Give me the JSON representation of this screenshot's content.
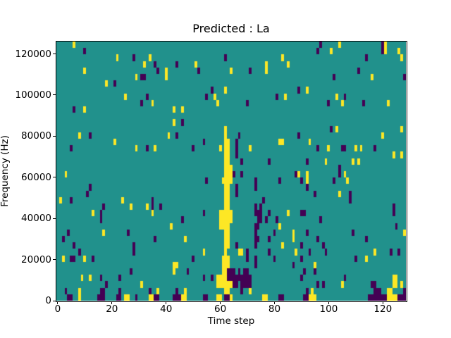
{
  "figure": {
    "background": "#ffffff",
    "text_color": "#000000"
  },
  "chart_data": {
    "type": "heatmap",
    "title": "Predicted : La",
    "xlabel": "Time step",
    "ylabel": "Frequency (Hz)",
    "legend": "none",
    "grid_lines": "off",
    "x_ticks": [
      0,
      20,
      40,
      60,
      80,
      100,
      120
    ],
    "y_ticks": [
      0,
      20000,
      40000,
      60000,
      80000,
      100000,
      120000
    ],
    "x_range": [
      0,
      129
    ],
    "y_range": [
      0,
      126000
    ],
    "grid": {
      "cols": 129,
      "rows": 40
    },
    "colors": {
      "mid_teal": "#21918c",
      "high_yellow": "#fde725",
      "low_dark": "#440154"
    },
    "features": {
      "description_of_values": "3-level viridis map: background value=teal, high cells=yellow, low cells=dark purple",
      "yellow_streak": "dense vertical yellow band at time steps 60-64 from 0 Hz up to ~80000 Hz",
      "dark_cluster": "dense dark cells at time steps 63-81 in the 0-45000 Hz band and along bottom-right edge"
    },
    "yellow_cells": [
      [
        6,
        39
      ],
      [
        104,
        39
      ],
      [
        121,
        39
      ],
      [
        101,
        38
      ],
      [
        121,
        38
      ],
      [
        126,
        38
      ],
      [
        22,
        37
      ],
      [
        34,
        37
      ],
      [
        83,
        37
      ],
      [
        127,
        37
      ],
      [
        32,
        36
      ],
      [
        51,
        36
      ],
      [
        77,
        36
      ],
      [
        85,
        36
      ],
      [
        10,
        35
      ],
      [
        40,
        35
      ],
      [
        64,
        35
      ],
      [
        77,
        35
      ],
      [
        29,
        34
      ],
      [
        40,
        34
      ],
      [
        116,
        34
      ],
      [
        18,
        33
      ],
      [
        62,
        32
      ],
      [
        92,
        32
      ],
      [
        25,
        31
      ],
      [
        58,
        31
      ],
      [
        84,
        31
      ],
      [
        103,
        31
      ],
      [
        35,
        30
      ],
      [
        59,
        30
      ],
      [
        105,
        30
      ],
      [
        122,
        30
      ],
      [
        10,
        29
      ],
      [
        43,
        29
      ],
      [
        46,
        29
      ],
      [
        43,
        27
      ],
      [
        62,
        26
      ],
      [
        103,
        26
      ],
      [
        127,
        26
      ],
      [
        8,
        25
      ],
      [
        41,
        25
      ],
      [
        62,
        25
      ],
      [
        120,
        25
      ],
      [
        21,
        24
      ],
      [
        62,
        24
      ],
      [
        63,
        24
      ],
      [
        82,
        24
      ],
      [
        83,
        24
      ],
      [
        93,
        24
      ],
      [
        29,
        23
      ],
      [
        36,
        23
      ],
      [
        60,
        23
      ],
      [
        62,
        23
      ],
      [
        63,
        23
      ],
      [
        71,
        23
      ],
      [
        100,
        23
      ],
      [
        110,
        23
      ],
      [
        112,
        23
      ],
      [
        62,
        22
      ],
      [
        63,
        22
      ],
      [
        124,
        22
      ],
      [
        127,
        22
      ],
      [
        62,
        21
      ],
      [
        63,
        21
      ],
      [
        99,
        21
      ],
      [
        109,
        21
      ],
      [
        111,
        21
      ],
      [
        62,
        20
      ],
      [
        63,
        20
      ],
      [
        64,
        20
      ],
      [
        3,
        19
      ],
      [
        62,
        19
      ],
      [
        63,
        19
      ],
      [
        64,
        19
      ],
      [
        89,
        19
      ],
      [
        92,
        19
      ],
      [
        106,
        19
      ],
      [
        61,
        18
      ],
      [
        62,
        18
      ],
      [
        63,
        18
      ],
      [
        64,
        18
      ],
      [
        92,
        18
      ],
      [
        107,
        18
      ],
      [
        62,
        17
      ],
      [
        63,
        17
      ],
      [
        62,
        16
      ],
      [
        63,
        16
      ],
      [
        104,
        16
      ],
      [
        1,
        15
      ],
      [
        24,
        15
      ],
      [
        62,
        15
      ],
      [
        63,
        15
      ],
      [
        27,
        14
      ],
      [
        33,
        14
      ],
      [
        62,
        14
      ],
      [
        63,
        14
      ],
      [
        13,
        13
      ],
      [
        35,
        13
      ],
      [
        60,
        13
      ],
      [
        61,
        13
      ],
      [
        62,
        13
      ],
      [
        63,
        13
      ],
      [
        64,
        13
      ],
      [
        85,
        13
      ],
      [
        60,
        12
      ],
      [
        61,
        12
      ],
      [
        62,
        12
      ],
      [
        63,
        12
      ],
      [
        64,
        12
      ],
      [
        42,
        11
      ],
      [
        60,
        11
      ],
      [
        61,
        11
      ],
      [
        62,
        11
      ],
      [
        63,
        11
      ],
      [
        82,
        11
      ],
      [
        17,
        10
      ],
      [
        62,
        10
      ],
      [
        63,
        10
      ],
      [
        87,
        10
      ],
      [
        128,
        10
      ],
      [
        47,
        9
      ],
      [
        62,
        9
      ],
      [
        63,
        9
      ],
      [
        87,
        9
      ],
      [
        62,
        8
      ],
      [
        63,
        8
      ],
      [
        83,
        8
      ],
      [
        54,
        7
      ],
      [
        62,
        7
      ],
      [
        67,
        7
      ],
      [
        68,
        7
      ],
      [
        88,
        7
      ],
      [
        117,
        7
      ],
      [
        2,
        6
      ],
      [
        10,
        6
      ],
      [
        61,
        6
      ],
      [
        62,
        6
      ],
      [
        63,
        6
      ],
      [
        114,
        6
      ],
      [
        43,
        5
      ],
      [
        44,
        5
      ],
      [
        61,
        5
      ],
      [
        62,
        5
      ],
      [
        63,
        5
      ],
      [
        95,
        5
      ],
      [
        43,
        4
      ],
      [
        61,
        4
      ],
      [
        62,
        4
      ],
      [
        9,
        3
      ],
      [
        12,
        3
      ],
      [
        59,
        3
      ],
      [
        60,
        3
      ],
      [
        61,
        3
      ],
      [
        62,
        3
      ],
      [
        124,
        3
      ],
      [
        125,
        3
      ],
      [
        31,
        2
      ],
      [
        59,
        2
      ],
      [
        60,
        2
      ],
      [
        61,
        2
      ],
      [
        62,
        2
      ],
      [
        63,
        2
      ],
      [
        64,
        2
      ],
      [
        105,
        2
      ],
      [
        124,
        2
      ],
      [
        125,
        2
      ],
      [
        127,
        2
      ],
      [
        8,
        1
      ],
      [
        37,
        1
      ],
      [
        47,
        1
      ],
      [
        62,
        1
      ],
      [
        63,
        1
      ],
      [
        71,
        1
      ],
      [
        94,
        1
      ],
      [
        122,
        1
      ],
      [
        123,
        1
      ],
      [
        8,
        0
      ],
      [
        25,
        0
      ],
      [
        26,
        0
      ],
      [
        34,
        0
      ],
      [
        35,
        0
      ],
      [
        46,
        0
      ],
      [
        47,
        0
      ],
      [
        59,
        0
      ],
      [
        60,
        0
      ],
      [
        64,
        0
      ],
      [
        76,
        0
      ],
      [
        77,
        0
      ],
      [
        93,
        0
      ],
      [
        94,
        0
      ],
      [
        95,
        0
      ],
      [
        122,
        0
      ],
      [
        123,
        0
      ],
      [
        124,
        0
      ],
      [
        125,
        0
      ]
    ],
    "dark_cells": [
      [
        97,
        39
      ],
      [
        120,
        39
      ],
      [
        10,
        38
      ],
      [
        96,
        38
      ],
      [
        120,
        38
      ],
      [
        28,
        37
      ],
      [
        62,
        37
      ],
      [
        114,
        37
      ],
      [
        36,
        36
      ],
      [
        44,
        36
      ],
      [
        37,
        35
      ],
      [
        52,
        35
      ],
      [
        71,
        35
      ],
      [
        111,
        35
      ],
      [
        31,
        34
      ],
      [
        32,
        34
      ],
      [
        102,
        34
      ],
      [
        128,
        34
      ],
      [
        21,
        33
      ],
      [
        57,
        32
      ],
      [
        89,
        32
      ],
      [
        33,
        31
      ],
      [
        55,
        31
      ],
      [
        81,
        31
      ],
      [
        106,
        31
      ],
      [
        31,
        30
      ],
      [
        70,
        30
      ],
      [
        100,
        30
      ],
      [
        113,
        30
      ],
      [
        6,
        29
      ],
      [
        46,
        27
      ],
      [
        101,
        26
      ],
      [
        12,
        25
      ],
      [
        44,
        25
      ],
      [
        67,
        25
      ],
      [
        89,
        25
      ],
      [
        54,
        24
      ],
      [
        66,
        24
      ],
      [
        5,
        23
      ],
      [
        33,
        23
      ],
      [
        50,
        23
      ],
      [
        66,
        23
      ],
      [
        96,
        23
      ],
      [
        105,
        23
      ],
      [
        106,
        23
      ],
      [
        117,
        23
      ],
      [
        66,
        22
      ],
      [
        68,
        21
      ],
      [
        78,
        21
      ],
      [
        92,
        21
      ],
      [
        104,
        20
      ],
      [
        65,
        19
      ],
      [
        68,
        19
      ],
      [
        88,
        19
      ],
      [
        104,
        19
      ],
      [
        55,
        18
      ],
      [
        73,
        18
      ],
      [
        82,
        18
      ],
      [
        90,
        18
      ],
      [
        102,
        18
      ],
      [
        12,
        17
      ],
      [
        66,
        17
      ],
      [
        73,
        17
      ],
      [
        92,
        17
      ],
      [
        11,
        16
      ],
      [
        66,
        16
      ],
      [
        95,
        16
      ],
      [
        108,
        16
      ],
      [
        5,
        15
      ],
      [
        35,
        15
      ],
      [
        76,
        15
      ],
      [
        108,
        15
      ],
      [
        17,
        14
      ],
      [
        35,
        14
      ],
      [
        38,
        14
      ],
      [
        73,
        14
      ],
      [
        75,
        14
      ],
      [
        124,
        14
      ],
      [
        16,
        13
      ],
      [
        54,
        13
      ],
      [
        73,
        13
      ],
      [
        74,
        13
      ],
      [
        75,
        13
      ],
      [
        78,
        13
      ],
      [
        90,
        13
      ],
      [
        91,
        13
      ],
      [
        124,
        13
      ],
      [
        16,
        12
      ],
      [
        46,
        12
      ],
      [
        74,
        12
      ],
      [
        75,
        12
      ],
      [
        77,
        12
      ],
      [
        81,
        12
      ],
      [
        97,
        12
      ],
      [
        73,
        11
      ],
      [
        74,
        11
      ],
      [
        125,
        11
      ],
      [
        4,
        10
      ],
      [
        26,
        10
      ],
      [
        73,
        10
      ],
      [
        80,
        10
      ],
      [
        92,
        10
      ],
      [
        109,
        10
      ],
      [
        2,
        9
      ],
      [
        36,
        9
      ],
      [
        73,
        9
      ],
      [
        74,
        9
      ],
      [
        78,
        9
      ],
      [
        96,
        9
      ],
      [
        114,
        9
      ],
      [
        6,
        8
      ],
      [
        28,
        8
      ],
      [
        66,
        8
      ],
      [
        73,
        8
      ],
      [
        90,
        8
      ],
      [
        98,
        8
      ],
      [
        8,
        7
      ],
      [
        28,
        7
      ],
      [
        70,
        7
      ],
      [
        78,
        7
      ],
      [
        93,
        7
      ],
      [
        99,
        7
      ],
      [
        123,
        7
      ],
      [
        126,
        7
      ],
      [
        5,
        6
      ],
      [
        6,
        6
      ],
      [
        13,
        6
      ],
      [
        50,
        6
      ],
      [
        70,
        6
      ],
      [
        73,
        6
      ],
      [
        80,
        6
      ],
      [
        90,
        6
      ],
      [
        110,
        6
      ],
      [
        73,
        5
      ],
      [
        87,
        5
      ],
      [
        27,
        4
      ],
      [
        48,
        4
      ],
      [
        63,
        4
      ],
      [
        64,
        4
      ],
      [
        65,
        4
      ],
      [
        67,
        4
      ],
      [
        69,
        4
      ],
      [
        70,
        4
      ],
      [
        91,
        4
      ],
      [
        95,
        4
      ],
      [
        16,
        3
      ],
      [
        23,
        3
      ],
      [
        54,
        3
      ],
      [
        57,
        3
      ],
      [
        63,
        3
      ],
      [
        64,
        3
      ],
      [
        65,
        3
      ],
      [
        66,
        3
      ],
      [
        67,
        3
      ],
      [
        68,
        3
      ],
      [
        69,
        3
      ],
      [
        70,
        3
      ],
      [
        71,
        3
      ],
      [
        90,
        3
      ],
      [
        106,
        3
      ],
      [
        18,
        2
      ],
      [
        65,
        2
      ],
      [
        66,
        2
      ],
      [
        68,
        2
      ],
      [
        69,
        2
      ],
      [
        70,
        2
      ],
      [
        71,
        2
      ],
      [
        96,
        2
      ],
      [
        98,
        2
      ],
      [
        116,
        2
      ],
      [
        117,
        2
      ],
      [
        3,
        1
      ],
      [
        16,
        1
      ],
      [
        17,
        1
      ],
      [
        23,
        1
      ],
      [
        34,
        1
      ],
      [
        44,
        1
      ],
      [
        68,
        1
      ],
      [
        92,
        1
      ],
      [
        117,
        1
      ],
      [
        118,
        1
      ],
      [
        119,
        1
      ],
      [
        128,
        1
      ],
      [
        4,
        0
      ],
      [
        5,
        0
      ],
      [
        15,
        0
      ],
      [
        16,
        0
      ],
      [
        17,
        0
      ],
      [
        22,
        0
      ],
      [
        23,
        0
      ],
      [
        29,
        0
      ],
      [
        36,
        0
      ],
      [
        37,
        0
      ],
      [
        43,
        0
      ],
      [
        44,
        0
      ],
      [
        45,
        0
      ],
      [
        54,
        0
      ],
      [
        55,
        0
      ],
      [
        62,
        0
      ],
      [
        63,
        0
      ],
      [
        82,
        0
      ],
      [
        83,
        0
      ],
      [
        91,
        0
      ],
      [
        92,
        0
      ],
      [
        115,
        0
      ],
      [
        116,
        0
      ],
      [
        117,
        0
      ],
      [
        118,
        0
      ],
      [
        119,
        0
      ],
      [
        120,
        0
      ],
      [
        121,
        0
      ],
      [
        126,
        0
      ],
      [
        127,
        0
      ],
      [
        128,
        0
      ]
    ]
  }
}
